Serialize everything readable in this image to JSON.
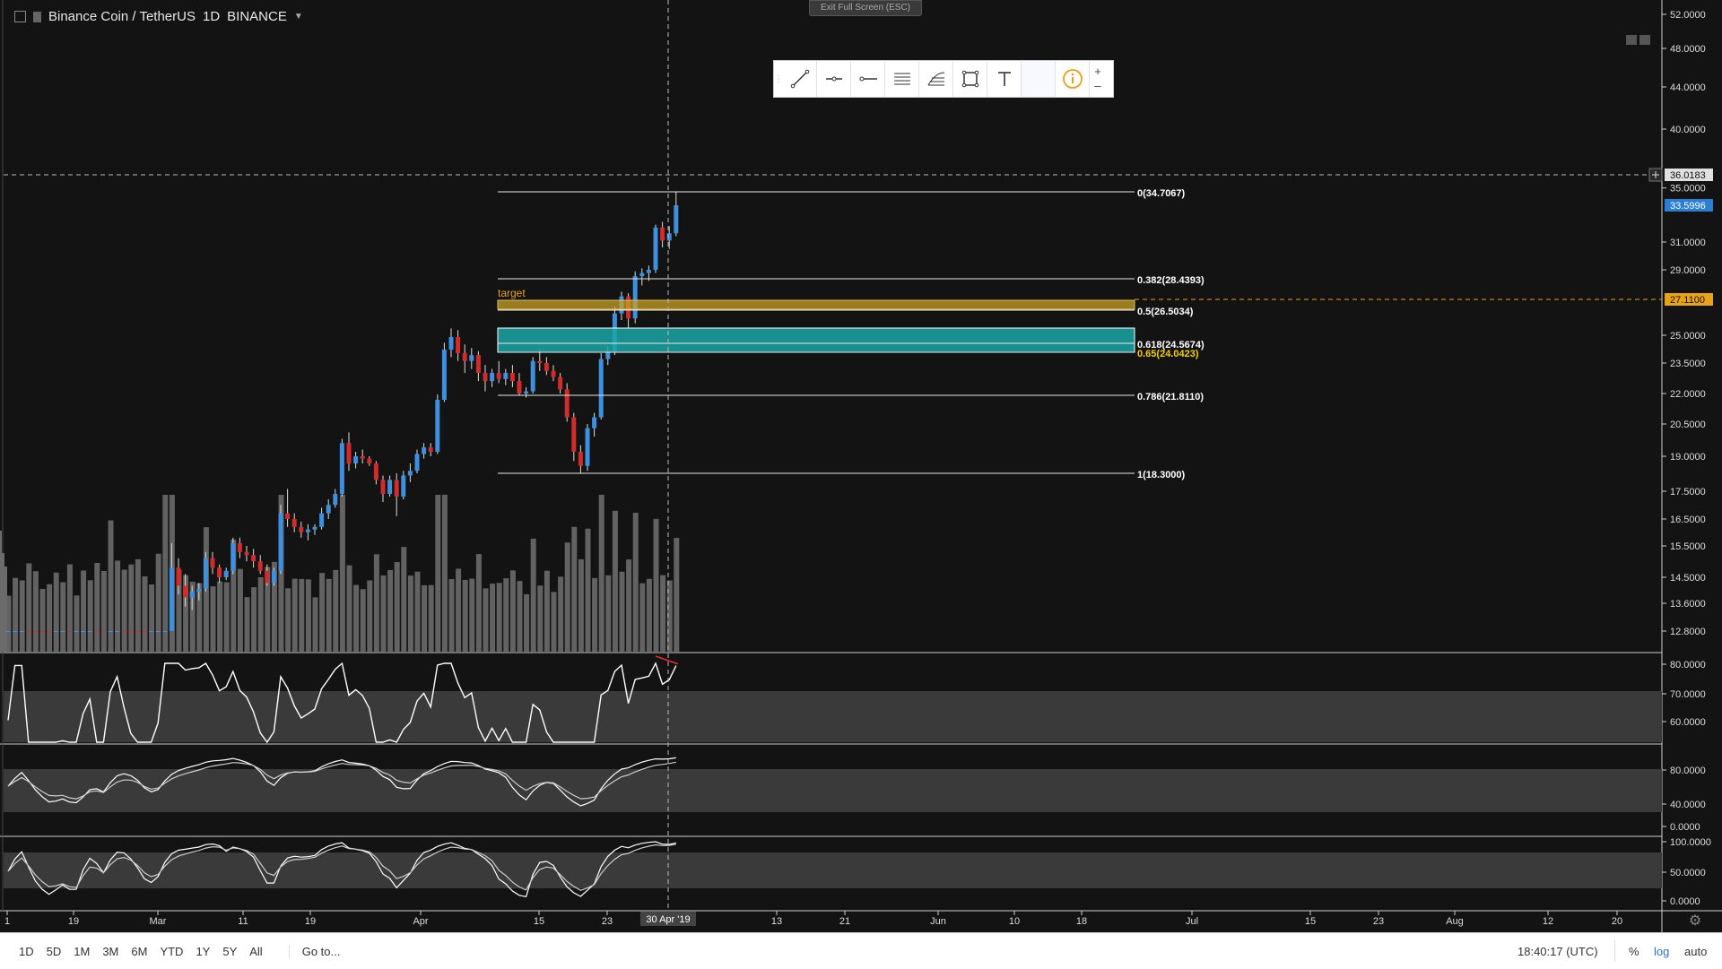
{
  "header": {
    "symbol": "Binance Coin / TetherUS",
    "interval": "1D",
    "exchange": "BINANCE"
  },
  "exit_fullscreen_label": "Exit Full Screen (ESC)",
  "drawing_toolbar": {
    "tools": [
      "trend-line-icon",
      "horizontal-ray-icon",
      "horizontal-line-icon",
      "parallel-channel-icon",
      "fib-retracement-icon",
      "rectangle-icon",
      "text-icon",
      "blank",
      "info-icon"
    ],
    "info_color": "#f39c12"
  },
  "price_axis": {
    "labels": [
      "52.0000",
      "48.0000",
      "44.0000",
      "40.0000",
      "35.0000",
      "31.0000",
      "29.0000",
      "25.0000",
      "23.5000",
      "22.0000",
      "20.5000",
      "19.0000",
      "17.5000",
      "16.5000",
      "15.5000",
      "14.5000",
      "13.6000",
      "12.8000"
    ],
    "crosshair_label": "36.0183",
    "last_price_label": "33.5996",
    "last_price_color": "#2a7fd4",
    "target_label": "27.1100",
    "target_color": "#e8a317"
  },
  "fib_levels": [
    {
      "label": "0(34.7067)",
      "value": 34.7067
    },
    {
      "label": "0.382(28.4393)",
      "value": 28.4393
    },
    {
      "label": "0.5(26.5034)",
      "value": 26.5034
    },
    {
      "label": "0.618(24.5674)",
      "value": 24.5674
    },
    {
      "label": "0.65(24.0423)",
      "value": 24.0423
    },
    {
      "label": "0.786(21.8110)",
      "value": 21.811
    },
    {
      "label": "1(18.3000)",
      "value": 18.3
    }
  ],
  "target_zone_label": "target",
  "target_zone_color": "#c9a227",
  "support_zone_color": "#1ba6a6",
  "indicator_axes": {
    "rsi": [
      "80.0000",
      "70.0000",
      "60.0000"
    ],
    "osc1": [
      "80.0000",
      "40.0000",
      "0.0000"
    ],
    "osc2": [
      "100.0000",
      "50.0000",
      "0.0000"
    ]
  },
  "time_axis": {
    "labels": [
      "1",
      "19",
      "Mar",
      "11",
      "19",
      "Apr",
      "15",
      "23",
      "13",
      "21",
      "Jun",
      "10",
      "18",
      "Jul",
      "15",
      "23",
      "Aug",
      "12",
      "20"
    ],
    "crosshair_label": "30 Apr '19"
  },
  "candle_colors": {
    "up": "#3d8fe0",
    "down": "#d32a2a",
    "volume": "#6b6b6b"
  },
  "bottom_bar": {
    "ranges": [
      "1D",
      "5D",
      "1M",
      "3M",
      "6M",
      "YTD",
      "1Y",
      "5Y",
      "All"
    ],
    "goto": "Go to...",
    "clock": "18:40:17 (UTC)",
    "percent": "%",
    "log": "log",
    "auto": "auto"
  }
}
